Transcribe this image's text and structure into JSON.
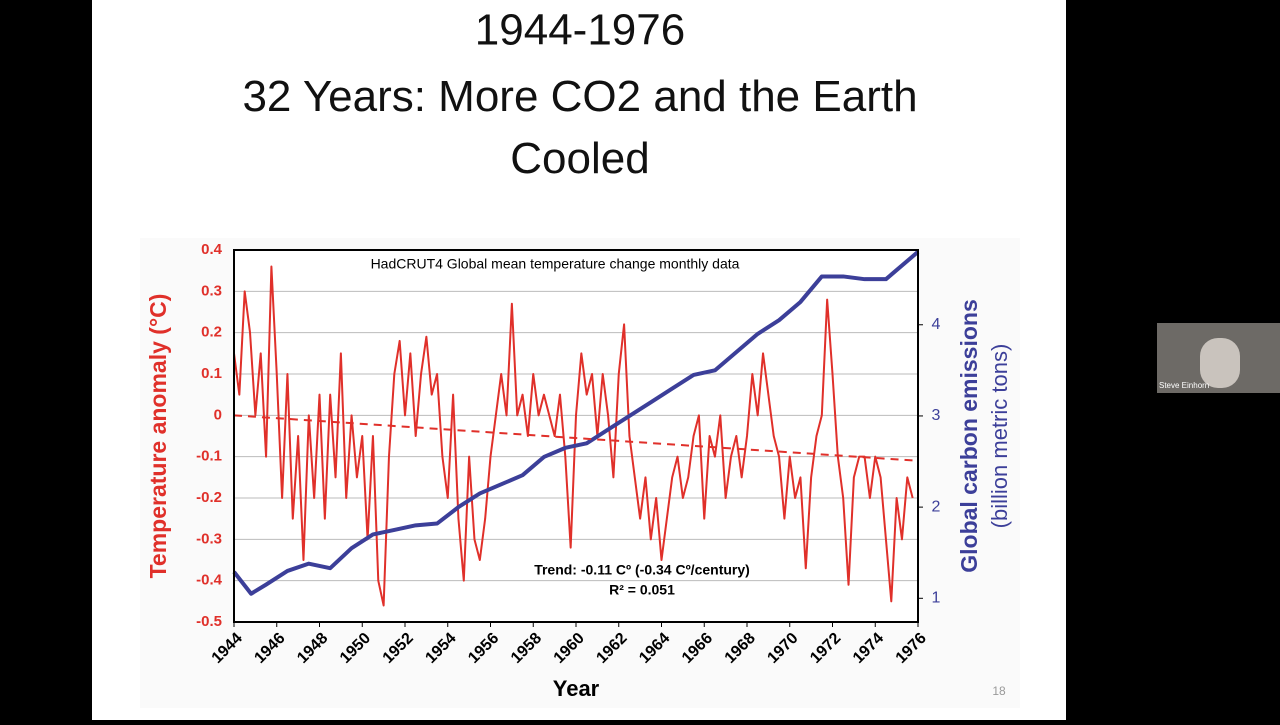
{
  "slide": {
    "title_lines": [
      "1944-1976",
      "32 Years: More CO2 and the Earth Cooled"
    ],
    "page_number": "18"
  },
  "participant": {
    "name": "Steve Einhorn"
  },
  "chart_data": {
    "type": "line",
    "title": "HadCRUT4 Global mean temperature change monthly data",
    "xlabel": "Year",
    "ylabel": "Temperature anomaly (°C)",
    "y2label": [
      "Global carbon emissions",
      "(billion metric tons)"
    ],
    "annotations": [
      "Trend: -0.11 Cº (-0.34 Cº/century)",
      "R² = 0.051"
    ],
    "xlim": [
      1944,
      1976
    ],
    "xticks": [
      1944,
      1946,
      1948,
      1950,
      1952,
      1954,
      1956,
      1958,
      1960,
      1962,
      1964,
      1966,
      1968,
      1970,
      1972,
      1974,
      1976
    ],
    "ylim": [
      -0.5,
      0.4
    ],
    "yticks": [
      -0.5,
      -0.4,
      -0.3,
      -0.2,
      -0.1,
      0,
      0.1,
      0.2,
      0.3,
      0.4
    ],
    "y2lim": [
      0.74,
      4.82
    ],
    "y2ticks": [
      1,
      2,
      3,
      4
    ],
    "grid": true,
    "series": [
      {
        "color": "#e0302a",
        "x": [
          1944,
          1944.25,
          1944.5,
          1944.75,
          1945,
          1945.25,
          1945.5,
          1945.75,
          1946,
          1946.25,
          1946.5,
          1946.75,
          1947,
          1947.25,
          1947.5,
          1947.75,
          1948,
          1948.25,
          1948.5,
          1948.75,
          1949,
          1949.25,
          1949.5,
          1949.75,
          1950,
          1950.25,
          1950.5,
          1950.75,
          1951,
          1951.25,
          1951.5,
          1951.75,
          1952,
          1952.25,
          1952.5,
          1952.75,
          1953,
          1953.25,
          1953.5,
          1953.75,
          1954,
          1954.25,
          1954.5,
          1954.75,
          1955,
          1955.25,
          1955.5,
          1955.75,
          1956,
          1956.25,
          1956.5,
          1956.75,
          1957,
          1957.25,
          1957.5,
          1957.75,
          1958,
          1958.25,
          1958.5,
          1958.75,
          1959,
          1959.25,
          1959.5,
          1959.75,
          1960,
          1960.25,
          1960.5,
          1960.75,
          1961,
          1961.25,
          1961.5,
          1961.75,
          1962,
          1962.25,
          1962.5,
          1962.75,
          1963,
          1963.25,
          1963.5,
          1963.75,
          1964,
          1964.25,
          1964.5,
          1964.75,
          1965,
          1965.25,
          1965.5,
          1965.75,
          1966,
          1966.25,
          1966.5,
          1966.75,
          1967,
          1967.25,
          1967.5,
          1967.75,
          1968,
          1968.25,
          1968.5,
          1968.75,
          1969,
          1969.25,
          1969.5,
          1969.75,
          1970,
          1970.25,
          1970.5,
          1970.75,
          1971,
          1971.25,
          1971.5,
          1971.75,
          1972,
          1972.25,
          1972.5,
          1972.75,
          1973,
          1973.25,
          1973.5,
          1973.75,
          1974,
          1974.25,
          1974.5,
          1974.75,
          1975,
          1975.25,
          1975.5,
          1975.75
        ],
        "values": [
          0.15,
          0.05,
          0.3,
          0.2,
          0.0,
          0.15,
          -0.1,
          0.36,
          0.1,
          -0.2,
          0.1,
          -0.25,
          -0.05,
          -0.35,
          0.0,
          -0.2,
          0.05,
          -0.25,
          0.05,
          -0.15,
          0.15,
          -0.2,
          0.0,
          -0.15,
          -0.05,
          -0.3,
          -0.05,
          -0.4,
          -0.46,
          -0.1,
          0.1,
          0.18,
          0.0,
          0.15,
          -0.05,
          0.1,
          0.19,
          0.05,
          0.1,
          -0.1,
          -0.2,
          0.05,
          -0.25,
          -0.4,
          -0.1,
          -0.3,
          -0.35,
          -0.25,
          -0.1,
          0.0,
          0.1,
          0.0,
          0.27,
          0.0,
          0.05,
          -0.05,
          0.1,
          0.0,
          0.05,
          0.0,
          -0.05,
          0.05,
          -0.1,
          -0.32,
          0.0,
          0.15,
          0.05,
          0.1,
          -0.05,
          0.1,
          0.0,
          -0.15,
          0.1,
          0.22,
          -0.05,
          -0.15,
          -0.25,
          -0.15,
          -0.3,
          -0.2,
          -0.35,
          -0.25,
          -0.15,
          -0.1,
          -0.2,
          -0.15,
          -0.05,
          0.0,
          -0.25,
          -0.05,
          -0.1,
          0.0,
          -0.2,
          -0.1,
          -0.05,
          -0.15,
          -0.05,
          0.1,
          0.0,
          0.15,
          0.05,
          -0.05,
          -0.1,
          -0.25,
          -0.1,
          -0.2,
          -0.15,
          -0.37,
          -0.15,
          -0.05,
          0.0,
          0.28,
          0.1,
          -0.1,
          -0.2,
          -0.41,
          -0.15,
          -0.1,
          -0.1,
          -0.2,
          -0.1,
          -0.15,
          -0.3,
          -0.45,
          -0.2,
          -0.3,
          -0.15,
          -0.2
        ]
      },
      {
        "color": "#3c3f99",
        "axis": "y2",
        "x": [
          1944,
          1944.8,
          1945.5,
          1946.5,
          1947.5,
          1948.5,
          1949.5,
          1950.5,
          1951.5,
          1952.5,
          1953.5,
          1954.5,
          1955.5,
          1956.5,
          1957.5,
          1958.5,
          1959.5,
          1960.5,
          1961.5,
          1962.5,
          1963.5,
          1964.5,
          1965.5,
          1966.5,
          1967.5,
          1968.5,
          1969.5,
          1970.5,
          1971.5,
          1972.5,
          1973.5,
          1974.5,
          1976
        ],
        "values": [
          1.29,
          1.05,
          1.15,
          1.3,
          1.38,
          1.33,
          1.55,
          1.7,
          1.75,
          1.8,
          1.82,
          2.0,
          2.15,
          2.25,
          2.35,
          2.55,
          2.65,
          2.7,
          2.85,
          3.0,
          3.15,
          3.3,
          3.45,
          3.5,
          3.7,
          3.9,
          4.05,
          4.25,
          4.53,
          4.53,
          4.5,
          4.5,
          4.8
        ]
      }
    ],
    "trend": {
      "color": "#e0302a",
      "dashed": true,
      "x": [
        1944,
        1976
      ],
      "values": [
        0,
        -0.11
      ]
    }
  }
}
